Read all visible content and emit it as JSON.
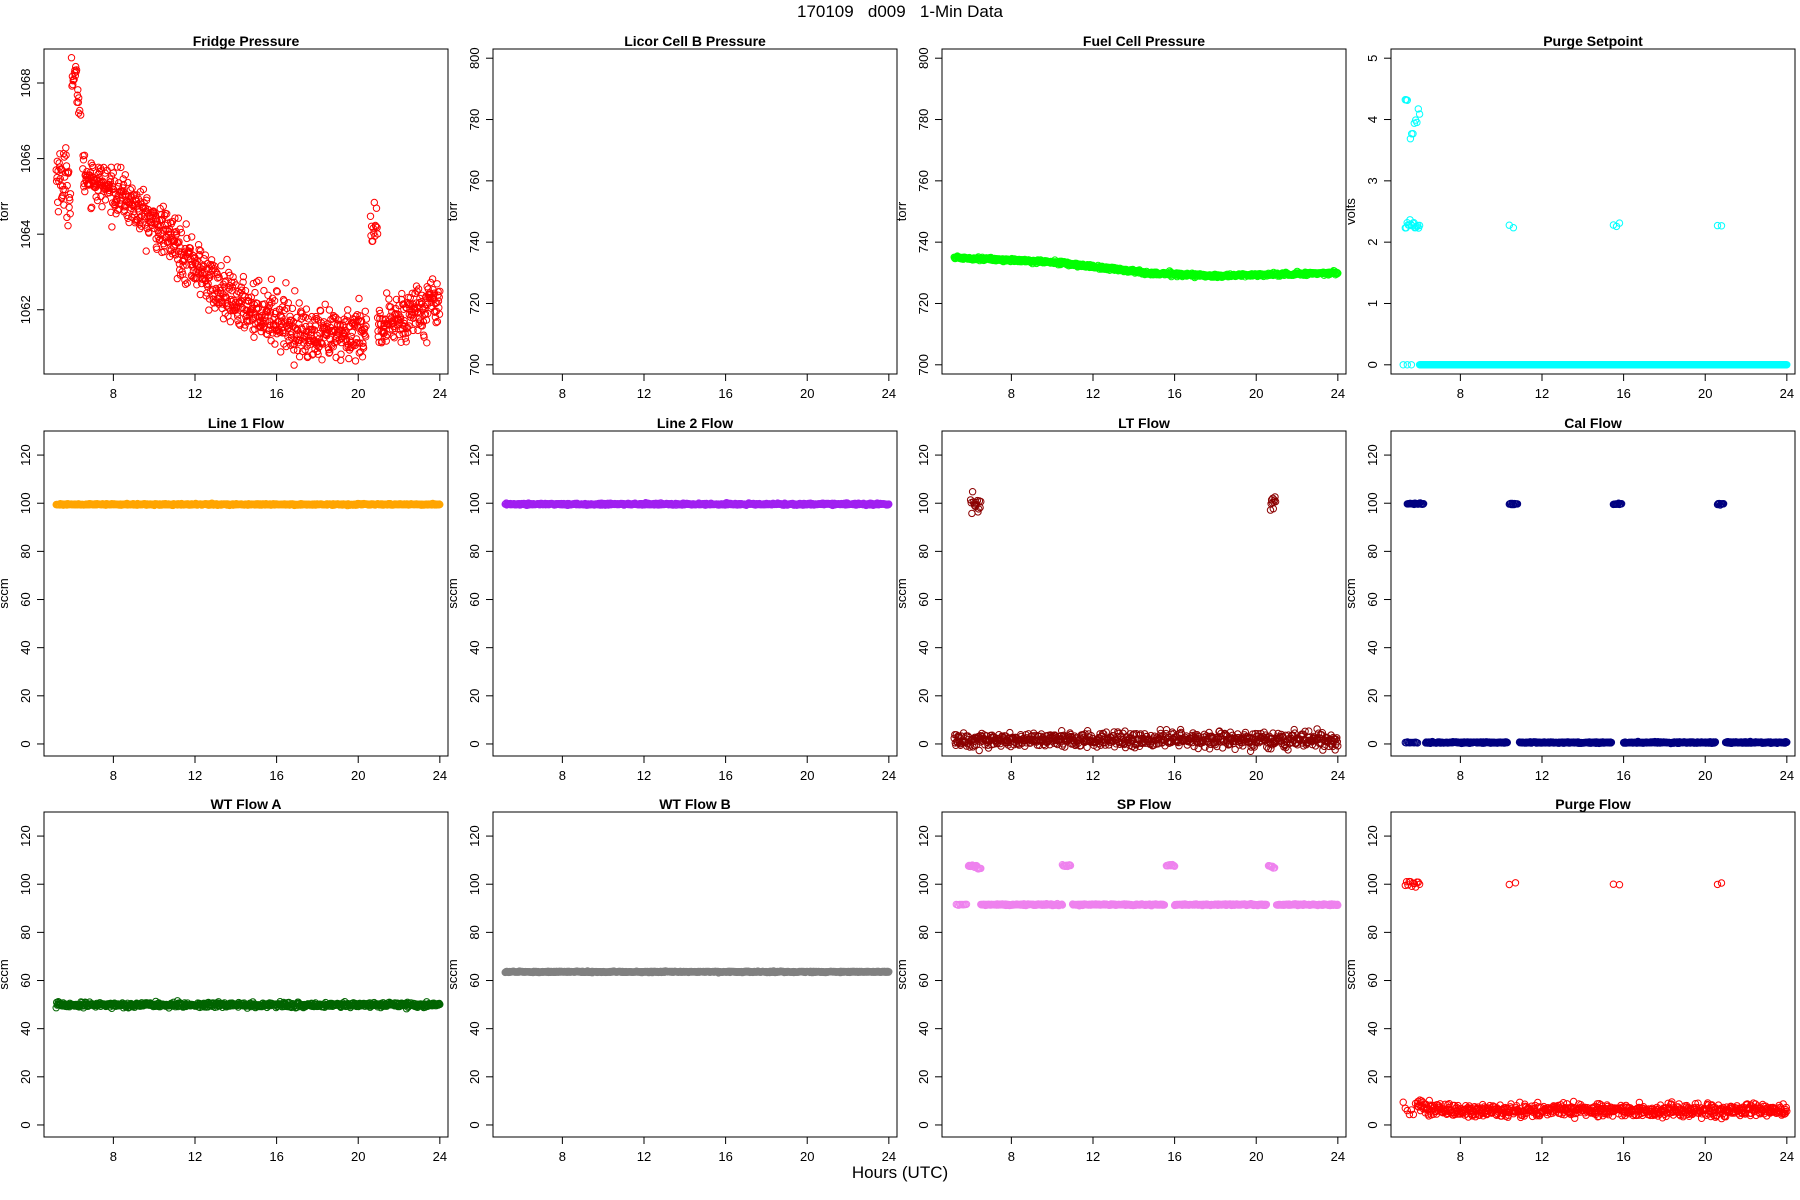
{
  "figure": {
    "title": "170109   d009   1-Min Data",
    "xlabel": "Hours (UTC)"
  },
  "chart_data": [
    {
      "type": "scatter",
      "title": "Fridge Pressure",
      "ylabel": "torr",
      "xlim": [
        4.6,
        24.4
      ],
      "ylim": [
        1060.3,
        1068.9
      ],
      "xticks": [
        8,
        12,
        16,
        20,
        24
      ],
      "yticks": [
        1062,
        1064,
        1066,
        1068
      ],
      "color": "#ff0000",
      "marker": "open-circle",
      "series": [
        {
          "segments": [
            {
              "x0": 5.2,
              "x1": 5.9,
              "y0": 1065.6,
              "y1": 1065.3,
              "noise": 0.45,
              "n": 40
            },
            {
              "x0": 5.95,
              "x1": 6.3,
              "y0": 1068.2,
              "y1": 1067.8,
              "noise": 0.3,
              "n": 18
            },
            {
              "x0": 6.3,
              "x1": 6.4,
              "y0": 1067.3,
              "y1": 1067.2,
              "noise": 0.15,
              "n": 3
            },
            {
              "x0": 6.5,
              "x1": 8.5,
              "y0": 1065.6,
              "y1": 1065.0,
              "noise": 0.28,
              "n": 120
            },
            {
              "x0": 8.5,
              "x1": 11.0,
              "y0": 1065.0,
              "y1": 1063.8,
              "noise": 0.3,
              "n": 150
            },
            {
              "x0": 11.0,
              "x1": 13.5,
              "y0": 1063.8,
              "y1": 1062.3,
              "noise": 0.35,
              "n": 150
            },
            {
              "x0": 13.5,
              "x1": 16.0,
              "y0": 1062.3,
              "y1": 1061.8,
              "noise": 0.35,
              "n": 150
            },
            {
              "x0": 16.0,
              "x1": 18.0,
              "y0": 1061.8,
              "y1": 1061.2,
              "noise": 0.35,
              "n": 120
            },
            {
              "x0": 18.0,
              "x1": 20.4,
              "y0": 1061.2,
              "y1": 1061.5,
              "noise": 0.35,
              "n": 140
            },
            {
              "x0": 20.6,
              "x1": 20.95,
              "y0": 1064.3,
              "y1": 1063.8,
              "noise": 0.3,
              "n": 14
            },
            {
              "x0": 20.95,
              "x1": 22.0,
              "y0": 1061.4,
              "y1": 1061.8,
              "noise": 0.35,
              "n": 60
            },
            {
              "x0": 22.0,
              "x1": 24.0,
              "y0": 1061.8,
              "y1": 1062.3,
              "noise": 0.35,
              "n": 120
            }
          ]
        }
      ]
    },
    {
      "type": "scatter",
      "title": "Licor Cell B Pressure",
      "ylabel": "torr",
      "xlim": [
        4.6,
        24.4
      ],
      "ylim": [
        697,
        803
      ],
      "xticks": [
        8,
        12,
        16,
        20,
        24
      ],
      "yticks": [
        700,
        720,
        740,
        760,
        780,
        800
      ],
      "color": "#000000",
      "marker": "open-circle",
      "series": []
    },
    {
      "type": "scatter",
      "title": "Fuel Cell Pressure",
      "ylabel": "torr",
      "xlim": [
        4.6,
        24.4
      ],
      "ylim": [
        697,
        803
      ],
      "xticks": [
        8,
        12,
        16,
        20,
        24
      ],
      "yticks": [
        700,
        720,
        740,
        760,
        780,
        800
      ],
      "color": "#00ff00",
      "marker": "open-circle",
      "series": [
        {
          "segments": [
            {
              "x0": 5.2,
              "x1": 10.0,
              "y0": 735.0,
              "y1": 733.5,
              "noise": 0.25,
              "n": 220
            },
            {
              "x0": 10.0,
              "x1": 15.0,
              "y0": 733.5,
              "y1": 729.8,
              "noise": 0.3,
              "n": 230
            },
            {
              "x0": 15.0,
              "x1": 18.0,
              "y0": 729.8,
              "y1": 729.0,
              "noise": 0.3,
              "n": 140
            },
            {
              "x0": 18.0,
              "x1": 24.0,
              "y0": 729.0,
              "y1": 730.0,
              "noise": 0.25,
              "n": 260
            }
          ]
        }
      ]
    },
    {
      "type": "scatter",
      "title": "Purge Setpoint",
      "ylabel": "volts",
      "xlim": [
        4.6,
        24.4
      ],
      "ylim": [
        -0.15,
        5.15
      ],
      "xticks": [
        8,
        12,
        16,
        20,
        24
      ],
      "yticks": [
        0,
        1,
        2,
        3,
        4,
        5
      ],
      "color": "#00ffff",
      "marker": "open-circle",
      "series": [
        {
          "segments": [
            {
              "x0": 5.2,
              "x1": 5.6,
              "y0": 0.0,
              "y1": 0.0,
              "noise": 0.0,
              "n": 3
            },
            {
              "x0": 5.3,
              "x1": 5.4,
              "y0": 4.32,
              "y1": 4.3,
              "noise": 0.02,
              "n": 3
            },
            {
              "x0": 5.55,
              "x1": 6.0,
              "y0": 3.75,
              "y1": 4.1,
              "noise": 0.05,
              "n": 8
            },
            {
              "x0": 5.3,
              "x1": 6.0,
              "y0": 2.28,
              "y1": 2.28,
              "noise": 0.04,
              "n": 16
            },
            {
              "x0": 10.4,
              "x1": 10.6,
              "y0": 2.27,
              "y1": 2.25,
              "noise": 0.02,
              "n": 2
            },
            {
              "x0": 15.5,
              "x1": 15.8,
              "y0": 2.26,
              "y1": 2.3,
              "noise": 0.02,
              "n": 3
            },
            {
              "x0": 20.6,
              "x1": 20.8,
              "y0": 2.28,
              "y1": 2.25,
              "noise": 0.02,
              "n": 2
            },
            {
              "x0": 6.0,
              "x1": 24.0,
              "y0": 0.0,
              "y1": 0.0,
              "noise": 0.0,
              "n": 720
            }
          ]
        }
      ]
    },
    {
      "type": "scatter",
      "title": "Line 1 Flow",
      "ylabel": "sccm",
      "xlim": [
        4.6,
        24.4
      ],
      "ylim": [
        -5,
        130
      ],
      "xticks": [
        8,
        12,
        16,
        20,
        24
      ],
      "yticks": [
        0,
        20,
        40,
        60,
        80,
        100,
        120
      ],
      "color": "#ffa500",
      "marker": "open-circle",
      "series": [
        {
          "segments": [
            {
              "x0": 5.2,
              "x1": 24.0,
              "y0": 99.5,
              "y1": 99.5,
              "noise": 0.15,
              "n": 760
            }
          ]
        }
      ]
    },
    {
      "type": "scatter",
      "title": "Line 2 Flow",
      "ylabel": "sccm",
      "xlim": [
        4.6,
        24.4
      ],
      "ylim": [
        -5,
        130
      ],
      "xticks": [
        8,
        12,
        16,
        20,
        24
      ],
      "yticks": [
        0,
        20,
        40,
        60,
        80,
        100,
        120
      ],
      "color": "#a020f0",
      "marker": "open-circle",
      "series": [
        {
          "segments": [
            {
              "x0": 5.2,
              "x1": 24.0,
              "y0": 99.6,
              "y1": 99.6,
              "noise": 0.2,
              "n": 760
            }
          ]
        }
      ]
    },
    {
      "type": "scatter",
      "title": "LT Flow",
      "ylabel": "sccm",
      "xlim": [
        4.6,
        24.4
      ],
      "ylim": [
        -5,
        130
      ],
      "xticks": [
        8,
        12,
        16,
        20,
        24
      ],
      "yticks": [
        0,
        20,
        40,
        60,
        80,
        100,
        120
      ],
      "color": "#8b0000",
      "marker": "open-circle",
      "series": [
        {
          "segments": [
            {
              "x0": 5.2,
              "x1": 24.0,
              "y0": 1.8,
              "y1": 1.8,
              "noise": 1.6,
              "n": 740
            },
            {
              "x0": 6.0,
              "x1": 6.5,
              "y0": 100.0,
              "y1": 99.5,
              "noise": 1.6,
              "n": 16
            },
            {
              "x0": 20.7,
              "x1": 20.95,
              "y0": 99.5,
              "y1": 100.0,
              "noise": 1.6,
              "n": 10
            }
          ]
        }
      ]
    },
    {
      "type": "scatter",
      "title": "Cal Flow",
      "ylabel": "sccm",
      "xlim": [
        4.6,
        24.4
      ],
      "ylim": [
        -5,
        130
      ],
      "xticks": [
        8,
        12,
        16,
        20,
        24
      ],
      "yticks": [
        0,
        20,
        40,
        60,
        80,
        100,
        120
      ],
      "color": "#000080",
      "marker": "open-circle",
      "series": [
        {
          "segments": [
            {
              "x0": 5.3,
              "x1": 5.9,
              "y0": 0.6,
              "y1": 0.6,
              "noise": 0.15,
              "n": 12
            },
            {
              "x0": 6.3,
              "x1": 10.3,
              "y0": 0.6,
              "y1": 0.6,
              "noise": 0.15,
              "n": 160
            },
            {
              "x0": 10.9,
              "x1": 15.4,
              "y0": 0.6,
              "y1": 0.6,
              "noise": 0.15,
              "n": 180
            },
            {
              "x0": 16.0,
              "x1": 20.5,
              "y0": 0.6,
              "y1": 0.6,
              "noise": 0.15,
              "n": 180
            },
            {
              "x0": 21.0,
              "x1": 24.0,
              "y0": 0.6,
              "y1": 0.6,
              "noise": 0.15,
              "n": 120
            },
            {
              "x0": 5.4,
              "x1": 6.2,
              "y0": 99.8,
              "y1": 99.8,
              "noise": 0.15,
              "n": 25
            },
            {
              "x0": 10.4,
              "x1": 10.8,
              "y0": 99.7,
              "y1": 99.7,
              "noise": 0.15,
              "n": 12
            },
            {
              "x0": 15.5,
              "x1": 15.9,
              "y0": 99.7,
              "y1": 99.7,
              "noise": 0.15,
              "n": 12
            },
            {
              "x0": 20.6,
              "x1": 20.9,
              "y0": 99.7,
              "y1": 99.7,
              "noise": 0.15,
              "n": 10
            }
          ]
        }
      ]
    },
    {
      "type": "scatter",
      "title": "WT Flow A",
      "ylabel": "sccm",
      "xlim": [
        4.6,
        24.4
      ],
      "ylim": [
        -5,
        130
      ],
      "xticks": [
        8,
        12,
        16,
        20,
        24
      ],
      "yticks": [
        0,
        20,
        40,
        60,
        80,
        100,
        120
      ],
      "color": "#006400",
      "marker": "open-circle",
      "series": [
        {
          "segments": [
            {
              "x0": 5.2,
              "x1": 24.0,
              "y0": 49.9,
              "y1": 49.9,
              "noise": 0.5,
              "n": 760
            }
          ]
        }
      ]
    },
    {
      "type": "scatter",
      "title": "WT Flow B",
      "ylabel": "sccm",
      "xlim": [
        4.6,
        24.4
      ],
      "ylim": [
        -5,
        130
      ],
      "xticks": [
        8,
        12,
        16,
        20,
        24
      ],
      "yticks": [
        0,
        20,
        40,
        60,
        80,
        100,
        120
      ],
      "color": "#808080",
      "marker": "open-circle",
      "series": [
        {
          "segments": [
            {
              "x0": 5.2,
              "x1": 24.0,
              "y0": 63.6,
              "y1": 63.6,
              "noise": 0.12,
              "n": 760
            }
          ]
        }
      ]
    },
    {
      "type": "scatter",
      "title": "SP Flow",
      "ylabel": "sccm",
      "xlim": [
        4.6,
        24.4
      ],
      "ylim": [
        -5,
        130
      ],
      "xticks": [
        8,
        12,
        16,
        20,
        24
      ],
      "yticks": [
        0,
        20,
        40,
        60,
        80,
        100,
        120
      ],
      "color": "#ee82ee",
      "marker": "open-circle",
      "series": [
        {
          "segments": [
            {
              "x0": 5.3,
              "x1": 5.8,
              "y0": 91.5,
              "y1": 91.5,
              "noise": 0.15,
              "n": 10
            },
            {
              "x0": 6.5,
              "x1": 10.5,
              "y0": 91.5,
              "y1": 91.5,
              "noise": 0.15,
              "n": 160
            },
            {
              "x0": 11.0,
              "x1": 15.5,
              "y0": 91.5,
              "y1": 91.5,
              "noise": 0.15,
              "n": 180
            },
            {
              "x0": 16.0,
              "x1": 20.5,
              "y0": 91.5,
              "y1": 91.5,
              "noise": 0.15,
              "n": 180
            },
            {
              "x0": 21.0,
              "x1": 24.0,
              "y0": 91.5,
              "y1": 91.5,
              "noise": 0.15,
              "n": 120
            },
            {
              "x0": 5.9,
              "x1": 6.3,
              "y0": 107.8,
              "y1": 107.5,
              "noise": 0.2,
              "n": 16
            },
            {
              "x0": 6.3,
              "x1": 6.5,
              "y0": 106.7,
              "y1": 106.5,
              "noise": 0.2,
              "n": 6
            },
            {
              "x0": 10.5,
              "x1": 10.9,
              "y0": 107.8,
              "y1": 107.8,
              "noise": 0.2,
              "n": 12
            },
            {
              "x0": 15.6,
              "x1": 16.0,
              "y0": 107.8,
              "y1": 107.8,
              "noise": 0.2,
              "n": 12
            },
            {
              "x0": 20.6,
              "x1": 20.9,
              "y0": 107.8,
              "y1": 106.8,
              "noise": 0.2,
              "n": 10
            }
          ]
        }
      ]
    },
    {
      "type": "scatter",
      "title": "Purge Flow",
      "ylabel": "sccm",
      "xlim": [
        4.6,
        24.4
      ],
      "ylim": [
        -5,
        130
      ],
      "xticks": [
        8,
        12,
        16,
        20,
        24
      ],
      "yticks": [
        0,
        20,
        40,
        60,
        80,
        100,
        120
      ],
      "color": "#ff0000",
      "marker": "open-circle",
      "series": [
        {
          "segments": [
            {
              "x0": 5.2,
              "x1": 5.9,
              "y0": 5.0,
              "y1": 6.0,
              "noise": 2.2,
              "n": 8
            },
            {
              "x0": 5.9,
              "x1": 6.4,
              "y0": 8.5,
              "y1": 7.5,
              "noise": 1.5,
              "n": 18
            },
            {
              "x0": 6.4,
              "x1": 24.0,
              "y0": 6.0,
              "y1": 6.0,
              "noise": 1.4,
              "n": 700
            },
            {
              "x0": 5.3,
              "x1": 6.0,
              "y0": 100.0,
              "y1": 100.0,
              "noise": 0.8,
              "n": 12
            },
            {
              "x0": 10.4,
              "x1": 10.7,
              "y0": 100.2,
              "y1": 100.6,
              "noise": 0.3,
              "n": 2
            },
            {
              "x0": 15.5,
              "x1": 15.8,
              "y0": 99.6,
              "y1": 100.0,
              "noise": 0.3,
              "n": 2
            },
            {
              "x0": 20.6,
              "x1": 20.8,
              "y0": 100.0,
              "y1": 100.0,
              "noise": 0.2,
              "n": 2
            }
          ]
        }
      ]
    }
  ]
}
